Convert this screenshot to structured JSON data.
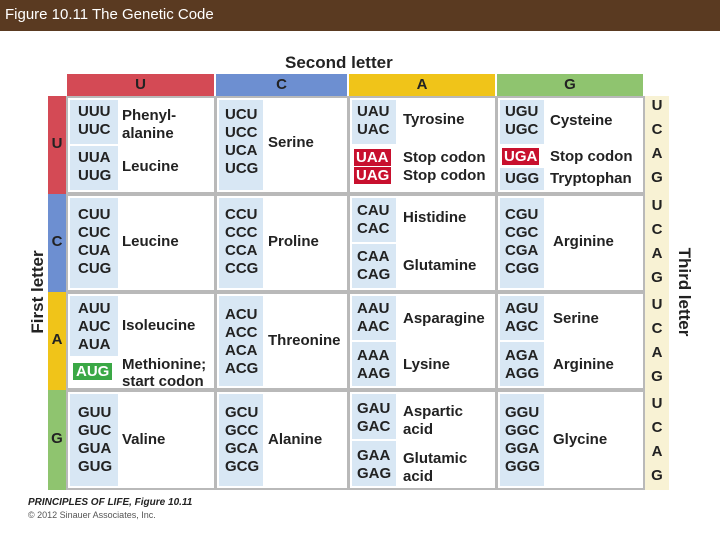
{
  "window": {
    "title": "Figure 10.11  The Genetic Code"
  },
  "colors": {
    "u": "#d44a55",
    "c": "#6d8fd1",
    "a": "#f0c419",
    "g": "#8fc46f",
    "cell_bg": "#d8e7f4",
    "stop": "#c8102e",
    "start": "#3aa845"
  },
  "headings": {
    "second_letter": "Second letter",
    "first_letter": "First letter",
    "third_letter": "Third letter"
  },
  "column_letters": [
    "U",
    "C",
    "A",
    "G"
  ],
  "row_letters": [
    "U",
    "C",
    "A",
    "G"
  ],
  "third_letters": [
    "U",
    "C",
    "A",
    "G",
    "U",
    "C",
    "A",
    "G",
    "U",
    "C",
    "A",
    "G",
    "U",
    "C",
    "A",
    "G"
  ],
  "table": {
    "row_u": {
      "col_u": {
        "codons1": [
          "UUU",
          "UUC"
        ],
        "aa1": [
          "Phenyl-",
          "alanine"
        ],
        "codons2": [
          "UUA",
          "UUG"
        ],
        "aa2": [
          "Leucine"
        ]
      },
      "col_c": {
        "codons": [
          "UCU",
          "UCC",
          "UCA",
          "UCG"
        ],
        "aa": "Serine"
      },
      "col_a": {
        "codons1": [
          "UAU",
          "UAC"
        ],
        "aa1": "Tyrosine",
        "stop1": "UAA",
        "stop1_aa": "Stop codon",
        "stop2": "UAG",
        "stop2_aa": "Stop codon"
      },
      "col_g": {
        "codons1": [
          "UGU",
          "UGC"
        ],
        "aa1": "Cysteine",
        "stop": "UGA",
        "stop_aa": "Stop codon",
        "codon4": "UGG",
        "aa4": "Tryptophan"
      }
    },
    "row_c": {
      "col_u": {
        "codons": [
          "CUU",
          "CUC",
          "CUA",
          "CUG"
        ],
        "aa": "Leucine"
      },
      "col_c": {
        "codons": [
          "CCU",
          "CCC",
          "CCA",
          "CCG"
        ],
        "aa": "Proline"
      },
      "col_a": {
        "codons1": [
          "CAU",
          "CAC"
        ],
        "aa1": "Histidine",
        "codons2": [
          "CAA",
          "CAG"
        ],
        "aa2": "Glutamine"
      },
      "col_g": {
        "codons": [
          "CGU",
          "CGC",
          "CGA",
          "CGG"
        ],
        "aa": "Arginine"
      }
    },
    "row_a": {
      "col_u": {
        "codons1": [
          "AUU",
          "AUC",
          "AUA"
        ],
        "aa1": "Isoleucine",
        "start": "AUG",
        "start_aa": [
          "Methionine;",
          "start codon"
        ]
      },
      "col_c": {
        "codons": [
          "ACU",
          "ACC",
          "ACA",
          "ACG"
        ],
        "aa": "Threonine"
      },
      "col_a": {
        "codons1": [
          "AAU",
          "AAC"
        ],
        "aa1": "Asparagine",
        "codons2": [
          "AAA",
          "AAG"
        ],
        "aa2": "Lysine"
      },
      "col_g": {
        "codons1": [
          "AGU",
          "AGC"
        ],
        "aa1": "Serine",
        "codons2": [
          "AGA",
          "AGG"
        ],
        "aa2": "Arginine"
      }
    },
    "row_g": {
      "col_u": {
        "codons": [
          "GUU",
          "GUC",
          "GUA",
          "GUG"
        ],
        "aa": "Valine"
      },
      "col_c": {
        "codons": [
          "GCU",
          "GCC",
          "GCA",
          "GCG"
        ],
        "aa": "Alanine"
      },
      "col_a": {
        "codons1": [
          "GAU",
          "GAC"
        ],
        "aa1": [
          "Aspartic",
          "acid"
        ],
        "codons2": [
          "GAA",
          "GAG"
        ],
        "aa2": [
          "Glutamic",
          "acid"
        ]
      },
      "col_g": {
        "codons": [
          "GGU",
          "GGC",
          "GGA",
          "GGG"
        ],
        "aa": "Glycine"
      }
    }
  },
  "footer": {
    "source": "PRINCIPLES OF LIFE, Figure 10.11",
    "copyright": "© 2012 Sinauer Associates, Inc."
  }
}
